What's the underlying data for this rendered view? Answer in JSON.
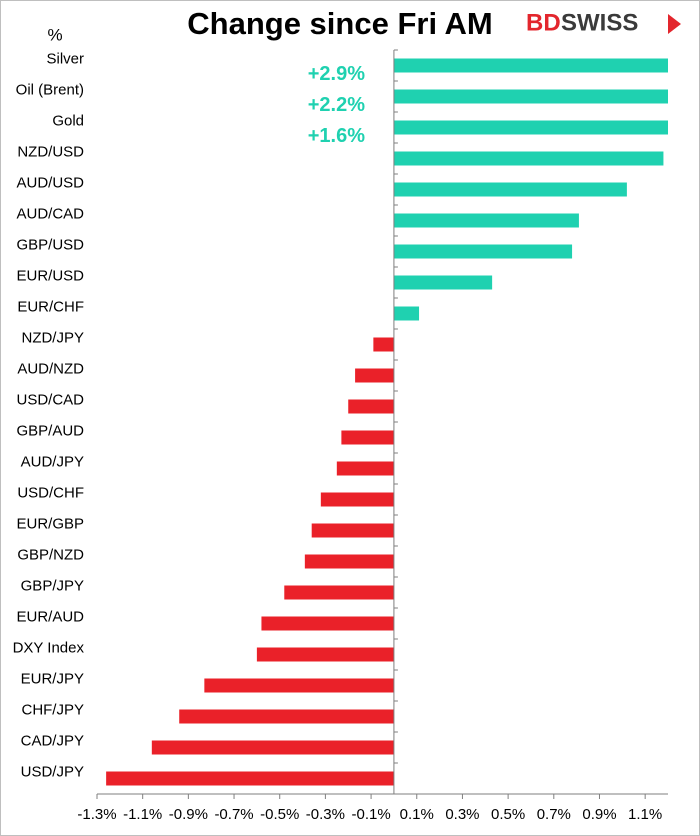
{
  "chart_data": {
    "type": "barh",
    "title": "Change since Fri AM",
    "unit_label": "%",
    "logo": {
      "part1": "BD",
      "part2": "SWISS"
    },
    "categories": [
      "Silver",
      "Oil (Brent)",
      "Gold",
      "NZD/USD",
      "AUD/USD",
      "AUD/CAD",
      "GBP/USD",
      "EUR/USD",
      "EUR/CHF",
      "NZD/JPY",
      "AUD/NZD",
      "USD/CAD",
      "GBP/AUD",
      "AUD/JPY",
      "USD/CHF",
      "EUR/GBP",
      "GBP/NZD",
      "GBP/JPY",
      "EUR/AUD",
      "DXY Index",
      "EUR/JPY",
      "CHF/JPY",
      "CAD/JPY",
      "USD/JPY"
    ],
    "values": [
      2.9,
      2.2,
      1.6,
      1.18,
      1.02,
      0.81,
      0.78,
      0.43,
      0.11,
      -0.09,
      -0.17,
      -0.2,
      -0.23,
      -0.25,
      -0.32,
      -0.36,
      -0.39,
      -0.48,
      -0.58,
      -0.6,
      -0.83,
      -0.94,
      -1.06,
      -1.26
    ],
    "value_labels": [
      "+2.9%",
      "+2.2%",
      "+1.6%",
      null,
      null,
      null,
      null,
      null,
      null,
      null,
      null,
      null,
      null,
      null,
      null,
      null,
      null,
      null,
      null,
      null,
      null,
      null,
      null,
      null
    ],
    "positive_color": "#1fd1b0",
    "negative_color": "#ea2129",
    "xlim": [
      -1.3,
      1.2
    ],
    "xticks": [
      {
        "value": -1.3,
        "label": "-1.3%"
      },
      {
        "value": -1.1,
        "label": "-1.1%"
      },
      {
        "value": -0.9,
        "label": "-0.9%"
      },
      {
        "value": -0.7,
        "label": "-0.7%"
      },
      {
        "value": -0.5,
        "label": "-0.5%"
      },
      {
        "value": -0.3,
        "label": "-0.3%"
      },
      {
        "value": -0.1,
        "label": "-0.1%"
      },
      {
        "value": 0.1,
        "label": "0.1%"
      },
      {
        "value": 0.3,
        "label": "0.3%"
      },
      {
        "value": 0.5,
        "label": "0.5%"
      },
      {
        "value": 0.7,
        "label": "0.7%"
      },
      {
        "value": 0.9,
        "label": "0.9%"
      },
      {
        "value": 1.1,
        "label": "1.1%"
      }
    ]
  }
}
